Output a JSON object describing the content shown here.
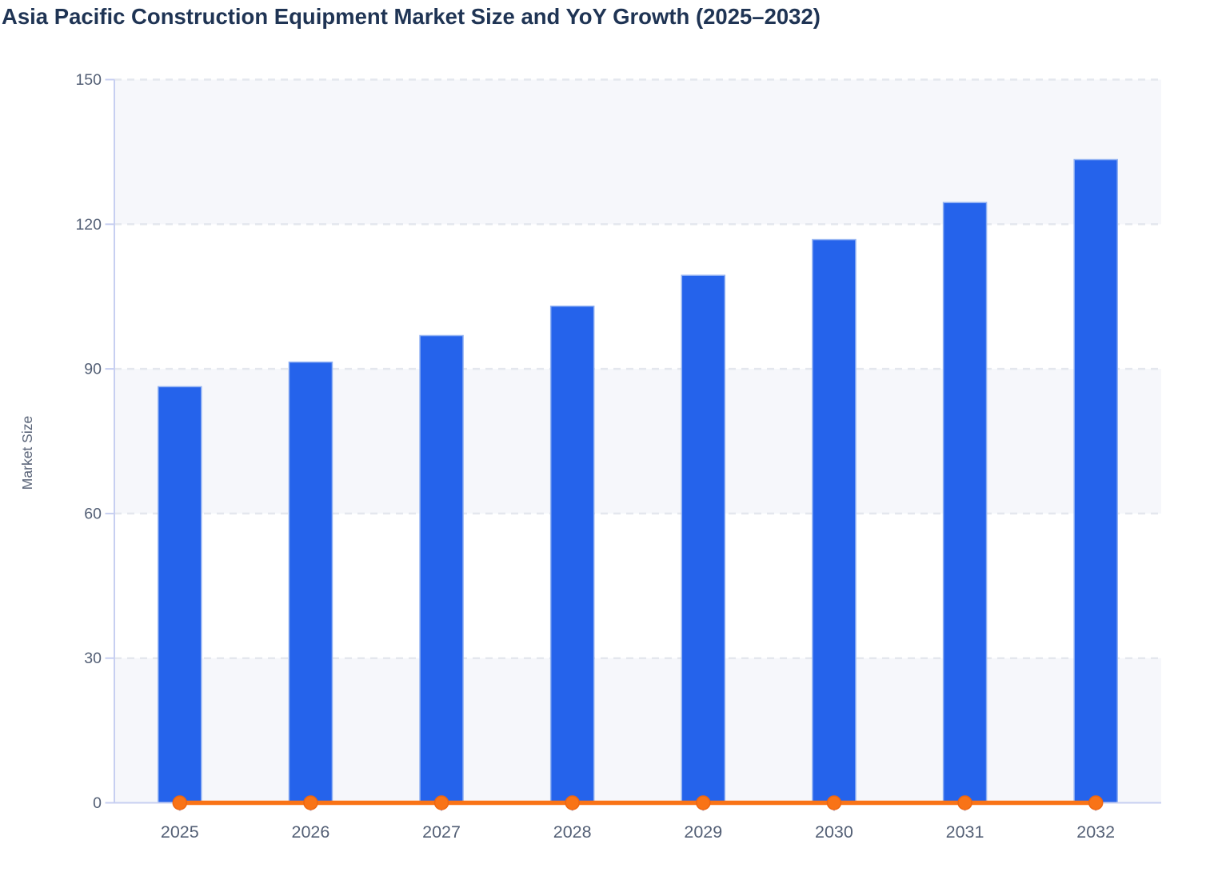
{
  "title": "Asia Pacific Construction Equipment Market Size and YoY Growth (2025–2032)",
  "chart_data": {
    "type": "bar",
    "subtype": "combo-bar-line",
    "title": "Asia Pacific Construction Equipment Market Size and YoY Growth (2025–2032)",
    "categories": [
      "2025",
      "2026",
      "2027",
      "2028",
      "2029",
      "2030",
      "2031",
      "2032"
    ],
    "series": [
      {
        "name": "Market Size",
        "type": "bar",
        "color": "#2563eb",
        "border_color": "#8fb0f2",
        "values": [
          86.3,
          91.4,
          96.9,
          103.0,
          109.4,
          116.8,
          124.5,
          133.4
        ]
      },
      {
        "name": "YoY Growth",
        "type": "line",
        "color": "#f97316",
        "marker": "circle",
        "marker_stroke": "#ed6510",
        "values": [
          0,
          0,
          0,
          0,
          0,
          0,
          0,
          0
        ]
      }
    ],
    "xlabel": "",
    "ylabel": "Market Size",
    "ylim": [
      0,
      150
    ],
    "yticks": [
      0,
      30,
      60,
      90,
      120,
      150
    ],
    "grid": "horizontal-dashed",
    "plot_bands": "alternating-light",
    "legend": "none"
  }
}
